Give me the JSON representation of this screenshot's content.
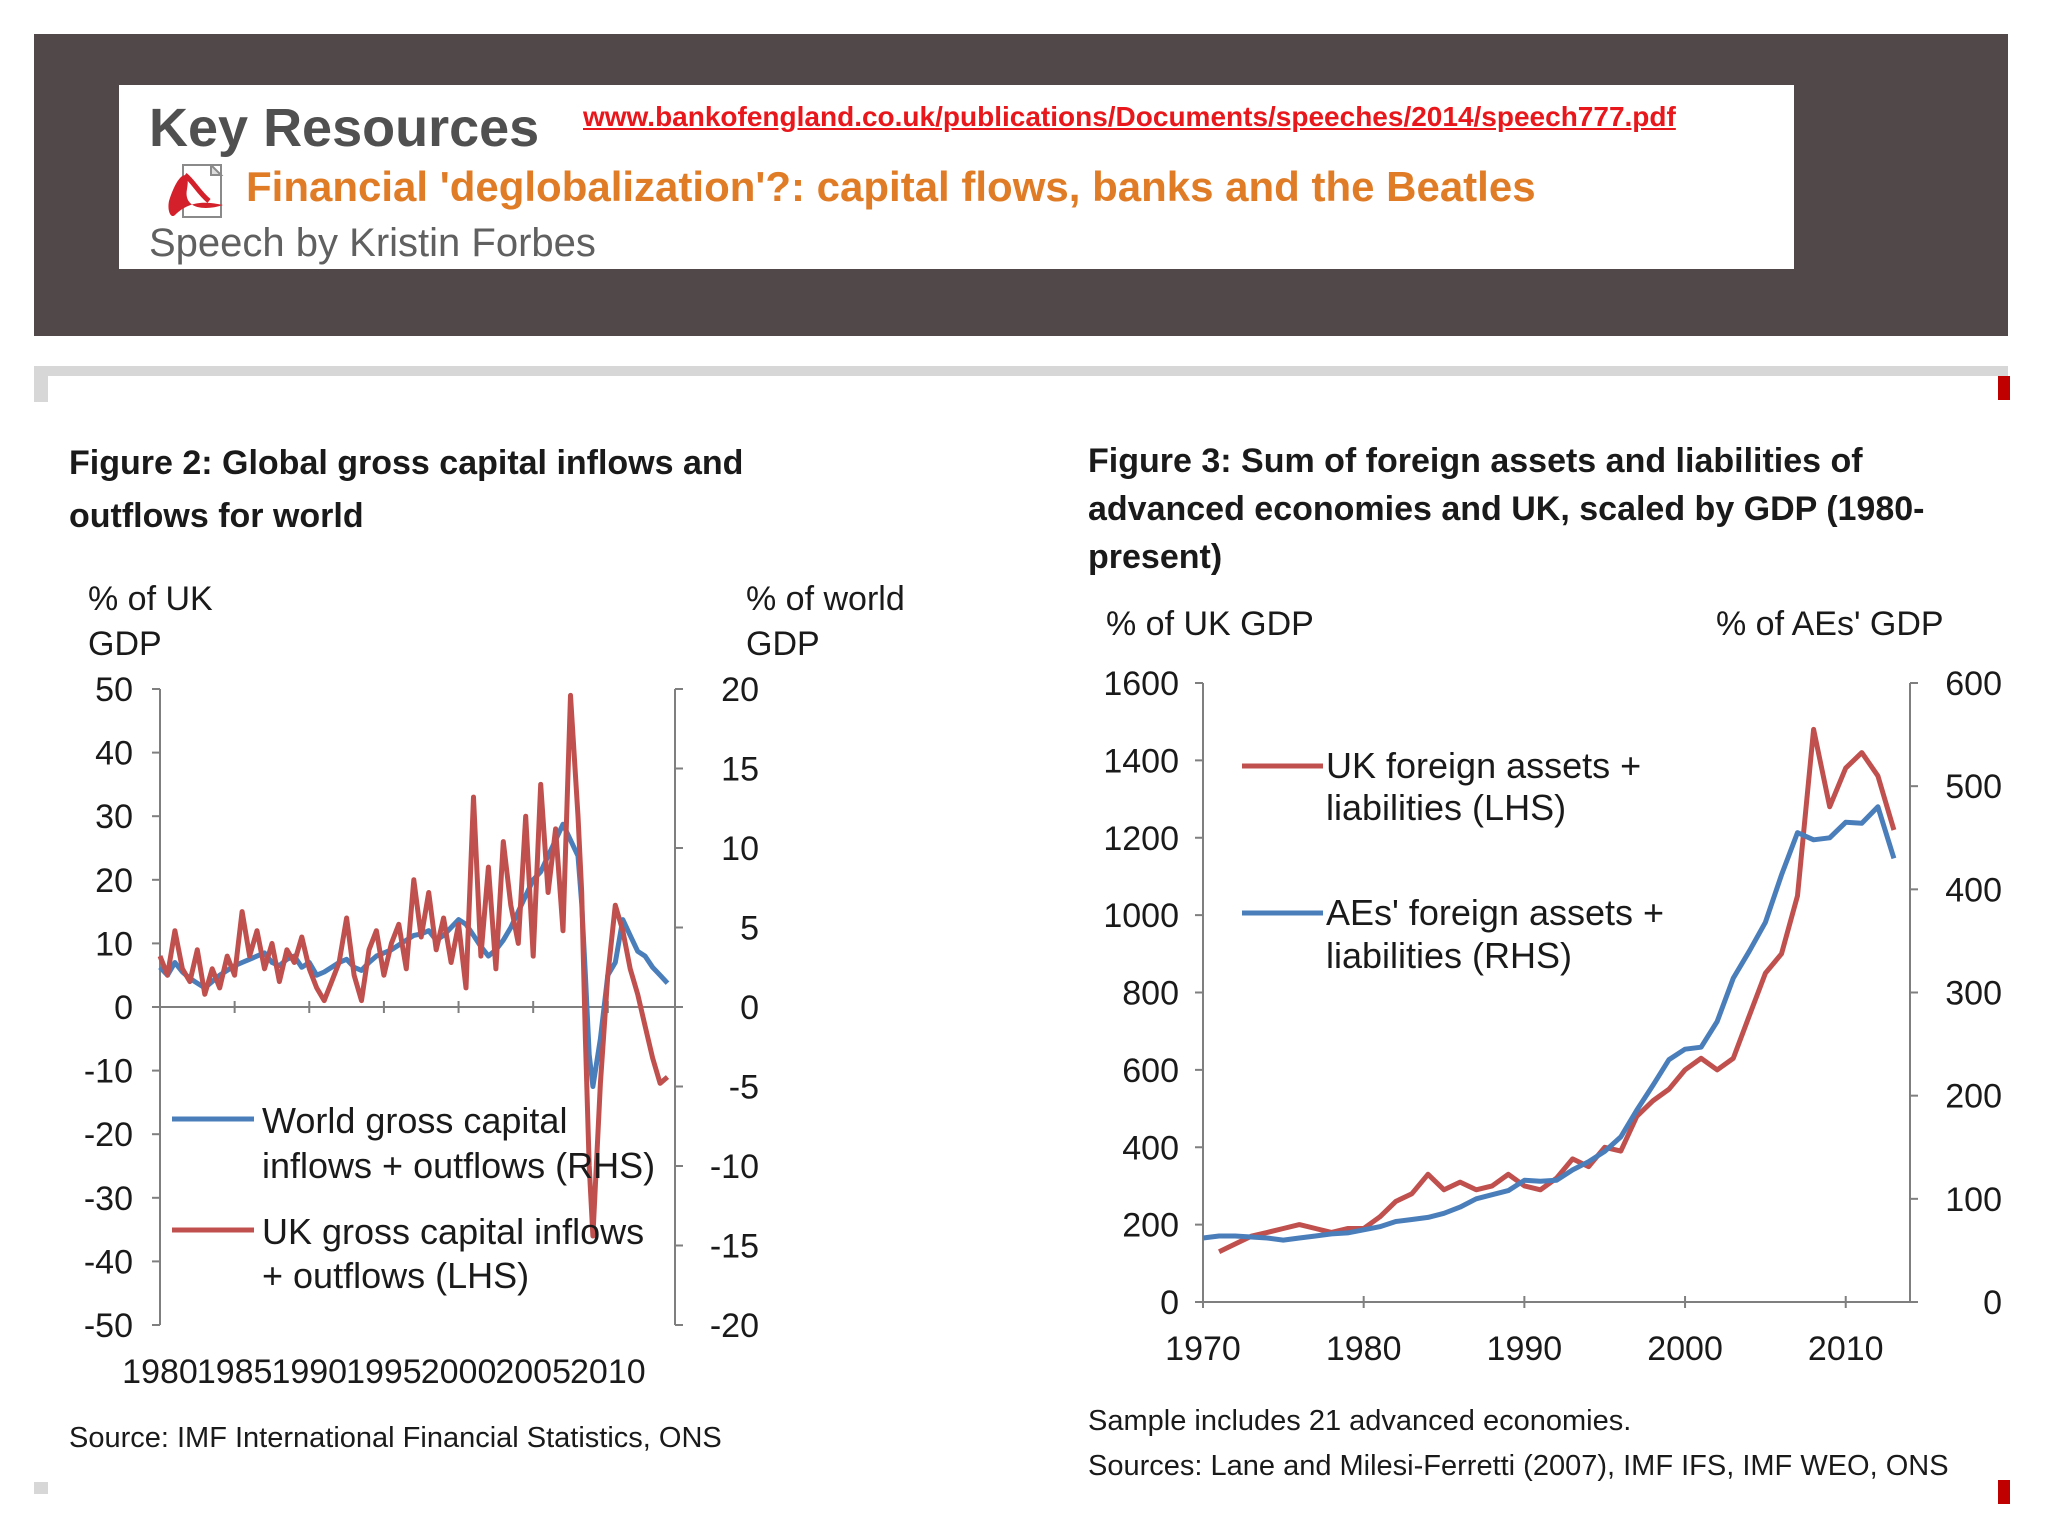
{
  "banner": {
    "heading": "Key Resources",
    "link": "www.bankofengland.co.uk/publications/Documents/speeches/2014/speech777.pdf",
    "speech_title": "Financial 'deglobalization'?: capital flows, banks and the Beatles",
    "author": "Speech by Kristin Forbes",
    "pdf_icon": "pdf-file-icon"
  },
  "chart_data": [
    {
      "type": "line",
      "title_lines": [
        "Figure 2: Global gross capital inflows and",
        "outflows for world"
      ],
      "ylabel_left": [
        "% of UK",
        "GDP"
      ],
      "ylabel_right": [
        "% of world",
        "GDP"
      ],
      "x_ticks": [
        "1980",
        "1985",
        "1990",
        "1995",
        "2000",
        "2005",
        "2010"
      ],
      "y_left_ticks": [
        "50",
        "40",
        "30",
        "20",
        "10",
        "0",
        "-10",
        "-20",
        "-30",
        "-40",
        "-50"
      ],
      "y_right_ticks": [
        "20",
        "15",
        "10",
        "5",
        "0",
        "-5",
        "-10",
        "-15",
        "-20"
      ],
      "xlim": [
        1980,
        2014.5
      ],
      "ylim_left": [
        -50,
        50
      ],
      "ylim_right": [
        -20,
        20
      ],
      "zero_line": true,
      "source": "Source: IMF International Financial Statistics, ONS",
      "series": [
        {
          "name_lines": [
            "World gross capital",
            "inflows + outflows (RHS)"
          ],
          "axis": "right",
          "color": "#4a7ebb",
          "x": [
            1980,
            1980.5,
            1981,
            1981.5,
            1982,
            1982.5,
            1983,
            1983.5,
            1984,
            1984.5,
            1985,
            1985.5,
            1986,
            1986.5,
            1987,
            1987.5,
            1988,
            1988.5,
            1989,
            1989.5,
            1990,
            1990.5,
            1991,
            1991.5,
            1992,
            1992.5,
            1993,
            1993.5,
            1994,
            1994.5,
            1995,
            1995.5,
            1996,
            1996.5,
            1997,
            1997.5,
            1998,
            1998.5,
            1999,
            1999.5,
            2000,
            2000.5,
            2001,
            2001.5,
            2002,
            2002.5,
            2003,
            2003.5,
            2004,
            2004.5,
            2005,
            2005.5,
            2006,
            2006.5,
            2007,
            2007.5,
            2008,
            2008.25,
            2008.5,
            2008.75,
            2009,
            2009.5,
            2010,
            2010.5,
            2011,
            2011.5,
            2012,
            2012.5,
            2013,
            2013.5,
            2014
          ],
          "values": [
            2.5,
            2.0,
            2.8,
            2.2,
            1.8,
            1.5,
            1.2,
            1.6,
            2.0,
            2.3,
            2.6,
            2.8,
            3.0,
            3.2,
            3.4,
            2.8,
            2.6,
            3.0,
            3.2,
            2.5,
            2.8,
            2.0,
            2.2,
            2.5,
            2.8,
            3.0,
            2.5,
            2.3,
            2.8,
            3.2,
            3.4,
            3.6,
            3.9,
            4.2,
            4.5,
            4.6,
            4.8,
            4.2,
            4.5,
            5.0,
            5.5,
            5.2,
            4.5,
            3.8,
            3.2,
            3.6,
            4.2,
            5.0,
            6.0,
            7.0,
            8.0,
            8.5,
            9.5,
            10.5,
            11.5,
            10.5,
            9.5,
            6.5,
            2.0,
            -3.0,
            -5.0,
            -2.0,
            2.0,
            2.8,
            5.5,
            4.5,
            3.5,
            3.2,
            2.5,
            2.0,
            1.5
          ]
        },
        {
          "name_lines": [
            "UK gross capital inflows",
            "+ outflows (LHS)"
          ],
          "axis": "left",
          "color": "#c0504d",
          "x": [
            1980,
            1980.5,
            1981,
            1981.5,
            1982,
            1982.5,
            1983,
            1983.5,
            1984,
            1984.5,
            1985,
            1985.5,
            1986,
            1986.5,
            1987,
            1987.5,
            1988,
            1988.5,
            1989,
            1989.5,
            1990,
            1990.5,
            1991,
            1991.5,
            1992,
            1992.5,
            1993,
            1993.5,
            1994,
            1994.5,
            1995,
            1995.5,
            1996,
            1996.5,
            1997,
            1997.5,
            1998,
            1998.5,
            1999,
            1999.5,
            2000,
            2000.5,
            2001,
            2001.5,
            2002,
            2002.5,
            2003,
            2003.5,
            2004,
            2004.5,
            2005,
            2005.5,
            2006,
            2006.5,
            2007,
            2007.5,
            2008,
            2008.25,
            2008.5,
            2008.75,
            2009,
            2009.5,
            2010,
            2010.5,
            2011,
            2011.5,
            2012,
            2012.5,
            2013,
            2013.5,
            2014
          ],
          "values": [
            8,
            5,
            12,
            6,
            4,
            9,
            2,
            6,
            3,
            8,
            5,
            15,
            8,
            12,
            6,
            10,
            4,
            9,
            7,
            11,
            6,
            3,
            1,
            4,
            7,
            14,
            5,
            1,
            9,
            12,
            5,
            10,
            13,
            6,
            20,
            11,
            18,
            9,
            14,
            7,
            13,
            3,
            33,
            8,
            22,
            6,
            26,
            16,
            10,
            30,
            8,
            35,
            18,
            28,
            12,
            49,
            30,
            18,
            -5,
            -25,
            -36,
            -12,
            5,
            16,
            12,
            6,
            2,
            -3,
            -8,
            -12,
            -11
          ]
        }
      ]
    },
    {
      "type": "line",
      "title_lines": [
        "Figure 3: Sum of foreign assets and liabilities of",
        "advanced economies and UK, scaled by GDP (1980-",
        "present)"
      ],
      "ylabel_left": [
        "% of UK GDP"
      ],
      "ylabel_right": [
        "% of AEs' GDP"
      ],
      "x_ticks": [
        "1970",
        "1980",
        "1990",
        "2000",
        "2010"
      ],
      "y_left_ticks": [
        "1600",
        "1400",
        "1200",
        "1000",
        "800",
        "600",
        "400",
        "200",
        "0"
      ],
      "y_right_ticks": [
        "600",
        "500",
        "400",
        "300",
        "200",
        "100",
        "0"
      ],
      "xlim": [
        1970,
        2014
      ],
      "ylim_left": [
        0,
        1600
      ],
      "ylim_right": [
        0,
        600
      ],
      "source_lines": [
        "Sample includes 21 advanced economies.",
        "Sources: Lane and Milesi-Ferretti (2007), IMF IFS, IMF WEO, ONS"
      ],
      "series": [
        {
          "name_lines": [
            "UK foreign assets +",
            "liabilities (LHS)"
          ],
          "axis": "left",
          "color": "#c0504d",
          "x": [
            1971,
            1972,
            1973,
            1974,
            1975,
            1976,
            1977,
            1978,
            1979,
            1980,
            1981,
            1982,
            1983,
            1984,
            1985,
            1986,
            1987,
            1988,
            1989,
            1990,
            1991,
            1992,
            1993,
            1994,
            1995,
            1996,
            1997,
            1998,
            1999,
            2000,
            2001,
            2002,
            2003,
            2004,
            2005,
            2006,
            2007,
            2008,
            2009,
            2010,
            2011,
            2012,
            2013
          ],
          "values": [
            130,
            150,
            170,
            180,
            190,
            200,
            190,
            180,
            190,
            190,
            220,
            260,
            280,
            330,
            290,
            310,
            290,
            300,
            330,
            300,
            290,
            320,
            370,
            350,
            400,
            390,
            480,
            520,
            550,
            600,
            630,
            600,
            630,
            740,
            850,
            900,
            1050,
            1480,
            1280,
            1380,
            1420,
            1360,
            1220
          ]
        },
        {
          "name_lines": [
            "AEs' foreign assets +",
            "liabilities (RHS)"
          ],
          "axis": "right",
          "color": "#4a7ebb",
          "x": [
            1970,
            1971,
            1972,
            1973,
            1974,
            1975,
            1976,
            1977,
            1978,
            1979,
            1980,
            1981,
            1982,
            1983,
            1984,
            1985,
            1986,
            1987,
            1988,
            1989,
            1990,
            1991,
            1992,
            1993,
            1994,
            1995,
            1996,
            1997,
            1998,
            1999,
            2000,
            2001,
            2002,
            2003,
            2004,
            2005,
            2006,
            2007,
            2008,
            2009,
            2010,
            2011,
            2012,
            2013
          ],
          "values": [
            62,
            64,
            64,
            63,
            62,
            60,
            62,
            64,
            66,
            67,
            70,
            73,
            78,
            80,
            82,
            86,
            92,
            100,
            104,
            108,
            118,
            117,
            118,
            128,
            136,
            146,
            160,
            186,
            210,
            235,
            245,
            247,
            272,
            314,
            340,
            368,
            414,
            455,
            448,
            450,
            465,
            464,
            480,
            430
          ]
        }
      ]
    }
  ]
}
